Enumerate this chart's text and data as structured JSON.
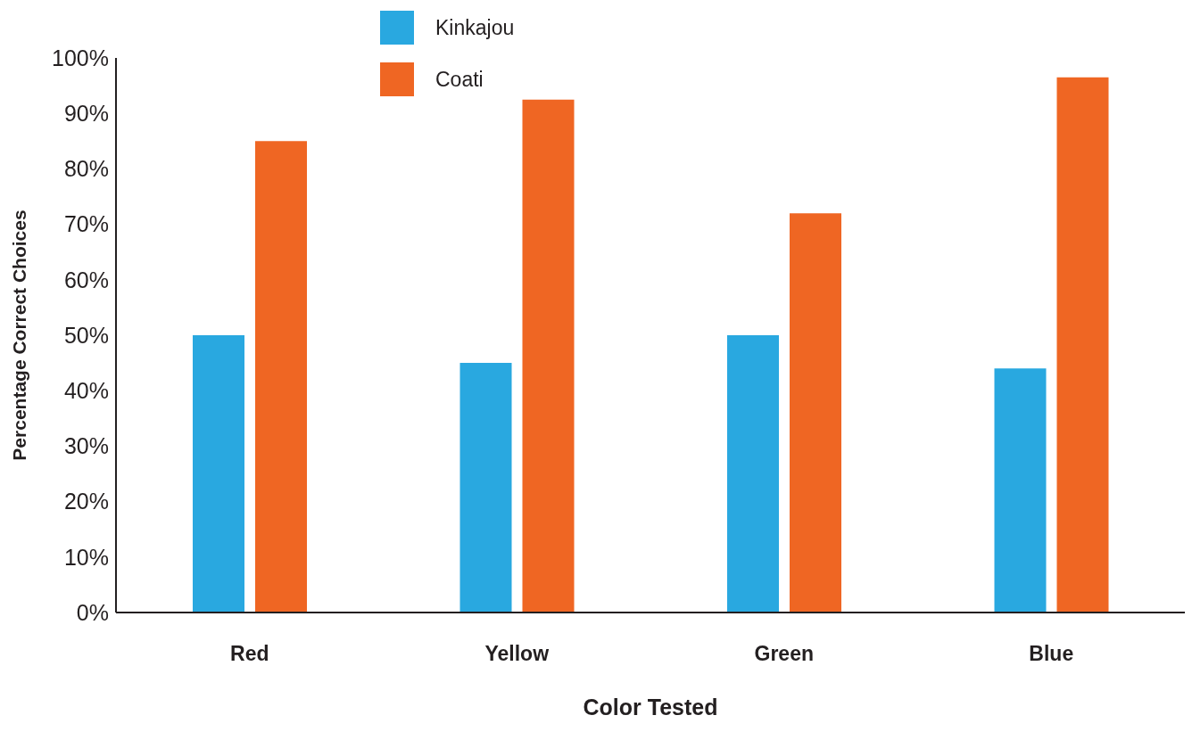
{
  "chart_data": {
    "type": "bar",
    "xlabel": "Color Tested",
    "ylabel": "Percentage Correct Choices",
    "categories": [
      "Red",
      "Yellow",
      "Green",
      "Blue"
    ],
    "series": [
      {
        "name": "Kinkajou",
        "color": "#29a8e0",
        "values": [
          50,
          45,
          50,
          44
        ]
      },
      {
        "name": "Coati",
        "color": "#ef6623",
        "values": [
          85,
          92.5,
          72,
          96.5
        ]
      }
    ],
    "ylim": [
      0,
      100
    ],
    "yticks": [
      {
        "value": 0,
        "label": "0%"
      },
      {
        "value": 10,
        "label": "10%"
      },
      {
        "value": 20,
        "label": "20%"
      },
      {
        "value": 30,
        "label": "30%"
      },
      {
        "value": 40,
        "label": "40%"
      },
      {
        "value": 50,
        "label": "50%"
      },
      {
        "value": 60,
        "label": "60%"
      },
      {
        "value": 70,
        "label": "70%"
      },
      {
        "value": 80,
        "label": "80%"
      },
      {
        "value": 90,
        "label": "90%"
      },
      {
        "value": 100,
        "label": "100%"
      }
    ],
    "grid": false,
    "legend": "top"
  }
}
